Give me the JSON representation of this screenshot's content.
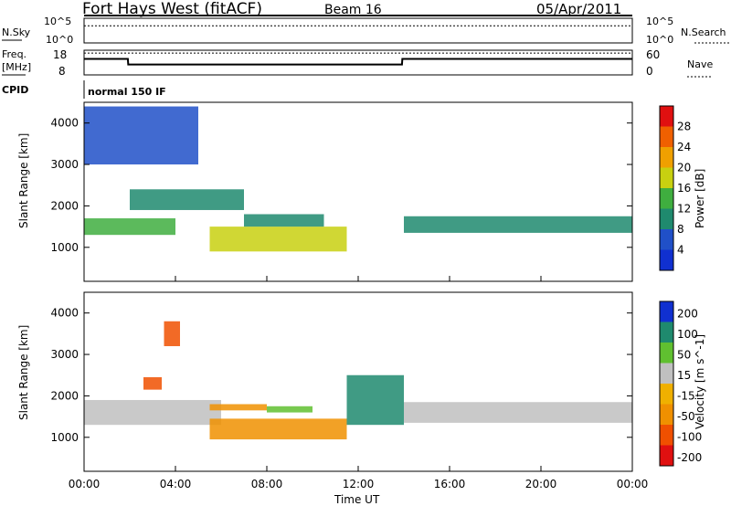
{
  "header": {
    "station": "Fort Hays West (fitACF)",
    "beam": "Beam 16",
    "date": "05/Apr/2011"
  },
  "top_panels": {
    "nsky_label": "N.Sky",
    "nsearch_label": "N.Search",
    "freq_label_1": "Freq.",
    "freq_label_2": "[MHz]",
    "nave_label": "Nave",
    "cpid_label": "CPID",
    "cpid_value": "normal 150 IF",
    "noise_ticks": [
      "10^5",
      "10^0"
    ],
    "freq_ticks": [
      "18",
      "8"
    ],
    "nave_ticks": [
      "60",
      "0"
    ]
  },
  "colors": {
    "power_scale": [
      "#1030d0",
      "#2050c8",
      "#1f8a6e",
      "#3fae3f",
      "#c8d010",
      "#f0a000",
      "#f06000",
      "#e01010"
    ],
    "velocity_scale": [
      "#e01010",
      "#f05000",
      "#f09000",
      "#f0b000",
      "#c0c0c0",
      "#60c030",
      "#1f8a6e",
      "#1030d0"
    ]
  },
  "chart_data": [
    {
      "type": "line",
      "panel": "noise",
      "series": [
        {
          "name": "N.Sky",
          "x": [
            "00:00",
            "02:00",
            "04:00",
            "06:00",
            "08:00",
            "10:00",
            "12:00",
            "14:00",
            "16:00",
            "18:00",
            "20:00",
            "22:00",
            "24:00"
          ],
          "values": [
            100000,
            100000,
            100000,
            100000,
            100000,
            100000,
            100000,
            100000,
            100000,
            100000,
            100000,
            100000,
            100000
          ]
        },
        {
          "name": "N.Search",
          "x": [
            "00:00",
            "02:00",
            "04:00",
            "06:00",
            "08:00",
            "10:00",
            "12:00",
            "14:00",
            "16:00",
            "18:00",
            "20:00",
            "22:00",
            "24:00"
          ],
          "values": [
            3000,
            3000,
            3000,
            3000,
            3000,
            3000,
            3000,
            3000,
            3000,
            3000,
            3000,
            3000,
            3000
          ]
        }
      ],
      "ylim": [
        1,
        100000
      ],
      "yscale": "log"
    },
    {
      "type": "line",
      "panel": "frequency",
      "series": [
        {
          "name": "Freq.",
          "x": [
            "00:00",
            "01:55",
            "01:56",
            "13:55",
            "13:56",
            "24:00"
          ],
          "values": [
            14.5,
            14.5,
            12.2,
            12.2,
            14.5,
            14.5
          ]
        },
        {
          "name": "Nave",
          "x": [
            "00:00",
            "24:00"
          ],
          "values": [
            53,
            53
          ]
        }
      ],
      "ylim": [
        8,
        18
      ],
      "y2lim": [
        0,
        60
      ]
    },
    {
      "type": "heatmap",
      "panel": "power",
      "xlabel": "",
      "ylabel": "Slant Range [km]",
      "xlim": [
        "00:00",
        "24:00"
      ],
      "ylim": [
        180,
        4500
      ],
      "yticks": [
        1000,
        2000,
        3000,
        4000
      ],
      "colorbar_label": "Power [dB]",
      "colorbar_ticks": [
        4,
        8,
        12,
        16,
        20,
        24,
        28
      ],
      "regions": [
        {
          "t": [
            0,
            4
          ],
          "range": [
            1300,
            1700
          ],
          "level": 12
        },
        {
          "t": [
            2,
            7
          ],
          "range": [
            1900,
            2400
          ],
          "level": 8
        },
        {
          "t": [
            5.5,
            11.5
          ],
          "range": [
            900,
            1500
          ],
          "level": 16
        },
        {
          "t": [
            7,
            10.5
          ],
          "range": [
            1500,
            1800
          ],
          "level": 8
        },
        {
          "t": [
            14,
            24
          ],
          "range": [
            1350,
            1750
          ],
          "level": 10
        },
        {
          "t": [
            0,
            5
          ],
          "range": [
            3000,
            4400
          ],
          "level": 4
        }
      ]
    },
    {
      "type": "heatmap",
      "panel": "velocity",
      "xlabel": "Time UT",
      "ylabel": "Slant Range [km]",
      "xlim": [
        "00:00",
        "24:00"
      ],
      "ylim": [
        180,
        4500
      ],
      "yticks": [
        1000,
        2000,
        3000,
        4000
      ],
      "xticks": [
        "00:00",
        "04:00",
        "08:00",
        "12:00",
        "16:00",
        "20:00",
        "00:00"
      ],
      "colorbar_label": "Velocity [m s^-1]",
      "colorbar_ticks": [
        200,
        100,
        50,
        15,
        -15,
        -50,
        -100,
        -200
      ],
      "regions": [
        {
          "t": [
            0,
            6
          ],
          "range": [
            1300,
            1900
          ],
          "level": 0
        },
        {
          "t": [
            5.5,
            11.5
          ],
          "range": [
            950,
            1450
          ],
          "level": -60
        },
        {
          "t": [
            2.6,
            3.4
          ],
          "range": [
            2150,
            2450
          ],
          "level": -200
        },
        {
          "t": [
            5.5,
            8
          ],
          "range": [
            1650,
            1800
          ],
          "level": -100
        },
        {
          "t": [
            8,
            10
          ],
          "range": [
            1600,
            1750
          ],
          "level": 40
        },
        {
          "t": [
            11.5,
            14
          ],
          "range": [
            1300,
            2500
          ],
          "level": 60
        },
        {
          "t": [
            14,
            24
          ],
          "range": [
            1350,
            1850
          ],
          "level": 0
        },
        {
          "t": [
            3.5,
            4.2
          ],
          "range": [
            3200,
            3800
          ],
          "level": -200
        }
      ]
    }
  ]
}
